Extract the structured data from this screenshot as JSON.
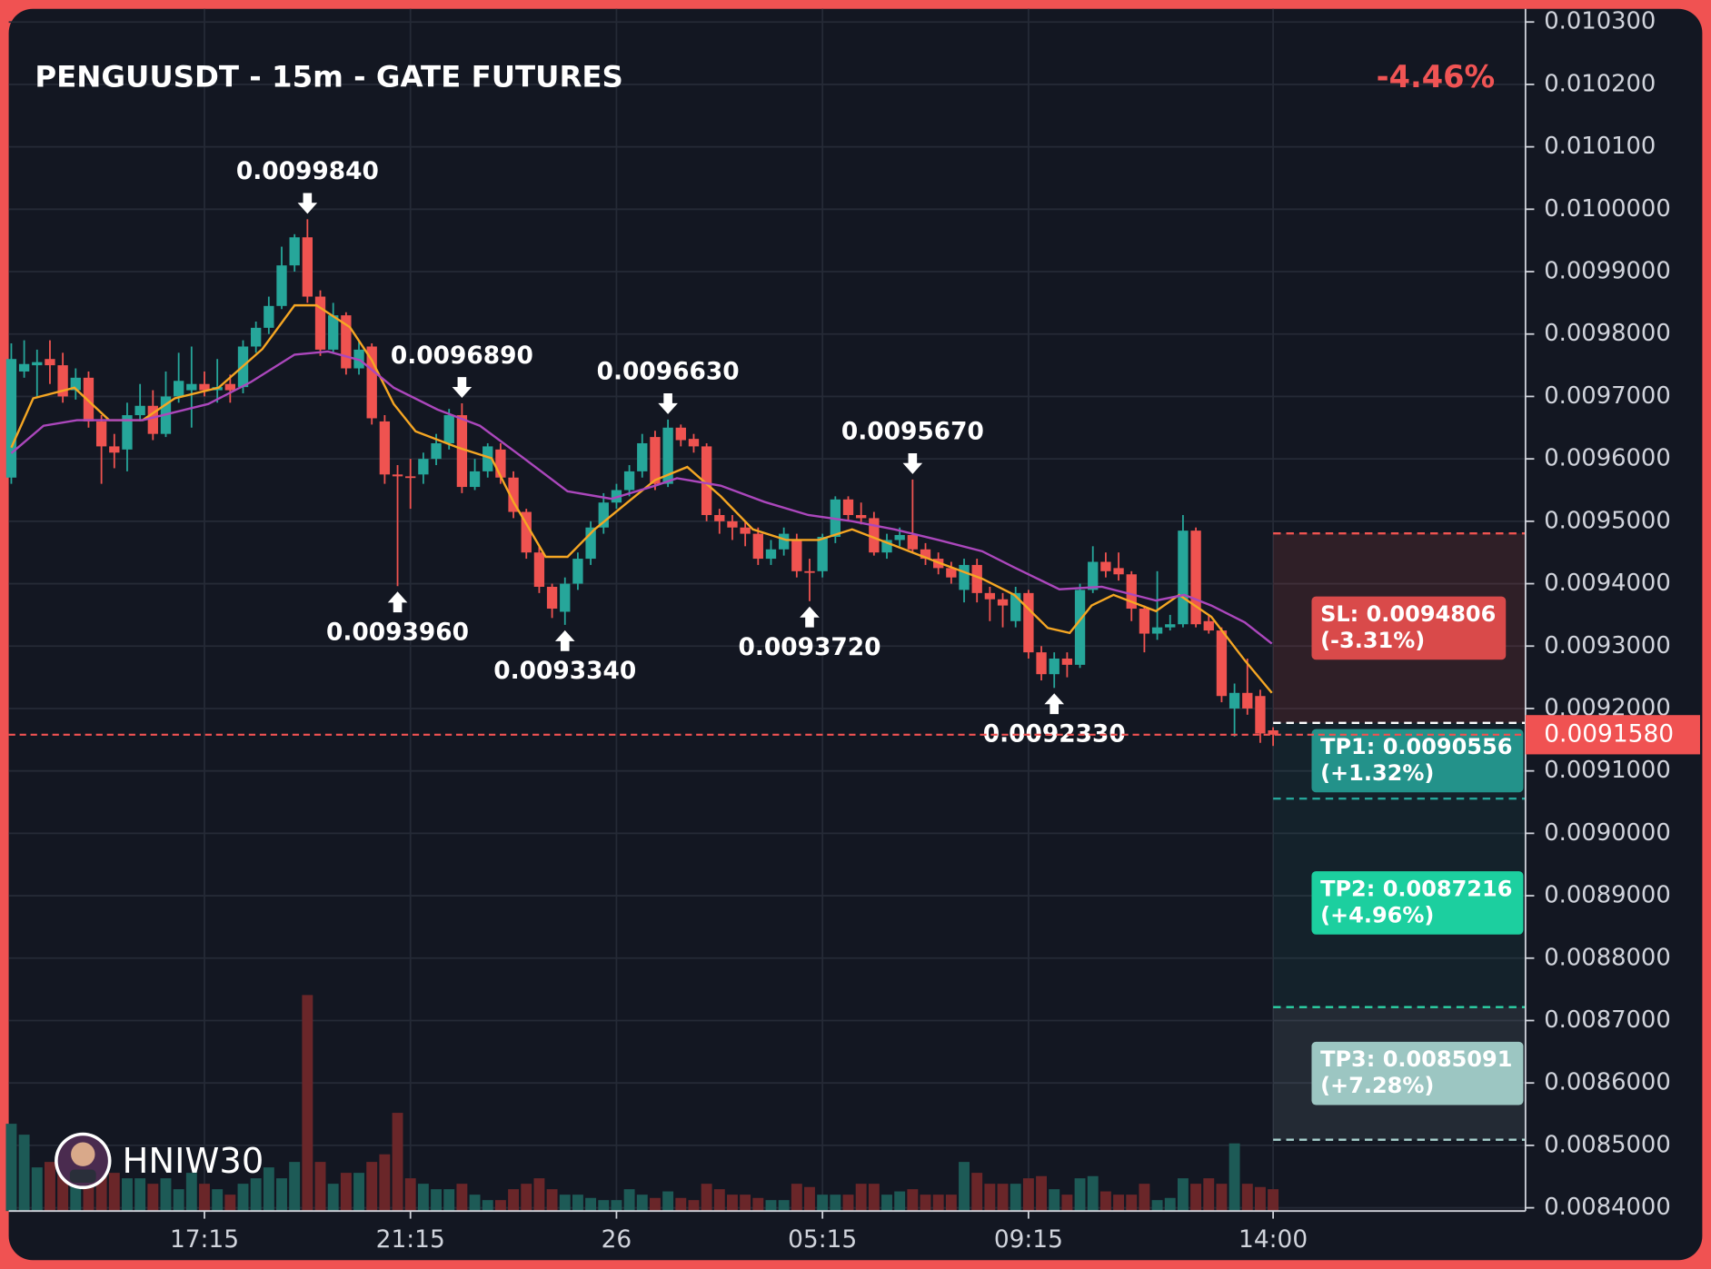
{
  "chart_data": {
    "type": "candlestick",
    "title": "PENGUUSDT - 15m - GATE FUTURES",
    "change": "-4.46%",
    "watermark": "HNIW30",
    "up_color": "#26a69a",
    "down_color": "#ef5350",
    "xlim": [
      -0.2,
      117.6
    ],
    "xticks": [
      {
        "value": 15,
        "label": "17:15"
      },
      {
        "value": 31,
        "label": "21:15"
      },
      {
        "value": 47,
        "label": "26"
      },
      {
        "value": 63,
        "label": "05:15"
      },
      {
        "value": 79,
        "label": "09:15"
      },
      {
        "value": 98,
        "label": "14:00"
      }
    ],
    "ylim": [
      0.0083948,
      0.010321
    ],
    "yticks": [
      {
        "value": 0.0084,
        "label": "0.0084000"
      },
      {
        "value": 0.0085,
        "label": "0.0085000"
      },
      {
        "value": 0.0086,
        "label": "0.0086000"
      },
      {
        "value": 0.0087,
        "label": "0.0087000"
      },
      {
        "value": 0.0088,
        "label": "0.0088000"
      },
      {
        "value": 0.0089,
        "label": "0.0089000"
      },
      {
        "value": 0.009,
        "label": "0.0090000"
      },
      {
        "value": 0.0091,
        "label": "0.0091000"
      },
      {
        "value": 0.0092,
        "label": "0.0092000"
      },
      {
        "value": 0.0093,
        "label": "0.0093000"
      },
      {
        "value": 0.0094,
        "label": "0.0094000"
      },
      {
        "value": 0.0095,
        "label": "0.0095000"
      },
      {
        "value": 0.0096,
        "label": "0.0096000"
      },
      {
        "value": 0.0097,
        "label": "0.0097000"
      },
      {
        "value": 0.0098,
        "label": "0.0098000"
      },
      {
        "value": 0.0099,
        "label": "0.0099000"
      },
      {
        "value": 0.01,
        "label": "0.0100000"
      },
      {
        "value": 0.0101,
        "label": "0.010100"
      },
      {
        "value": 0.0102,
        "label": "0.010200"
      },
      {
        "value": 0.0103,
        "label": "0.010300"
      }
    ],
    "grid": true,
    "open": [
      0.00957,
      0.00974,
      0.00975,
      0.00976,
      0.00975,
      0.00971,
      0.00973,
      0.00966,
      0.00962,
      0.009615,
      0.00967,
      0.009685,
      0.00964,
      0.0097,
      0.00971,
      0.00972,
      0.00971,
      0.00972,
      0.009715,
      0.00978,
      0.00981,
      0.009845,
      0.00991,
      0.009955,
      0.00986,
      0.009775,
      0.00983,
      0.009745,
      0.00978,
      0.00966,
      0.009575,
      0.009572,
      0.009575,
      0.0096,
      0.009625,
      0.00967,
      0.009555,
      0.00958,
      0.009615,
      0.00957,
      0.009515,
      0.00945,
      0.009395,
      0.009355,
      0.0094,
      0.00944,
      0.00949,
      0.00953,
      0.00955,
      0.00958,
      0.009635,
      0.00956,
      0.00965,
      0.009632,
      0.00962,
      0.00951,
      0.0095,
      0.00949,
      0.00948,
      0.00944,
      0.009455,
      0.00947,
      0.00942,
      0.00942,
      0.009475,
      0.009535,
      0.00951,
      0.009505,
      0.00945,
      0.00947,
      0.009478,
      0.009455,
      0.00944,
      0.009425,
      0.00939,
      0.00943,
      0.009385,
      0.009375,
      0.00934,
      0.009385,
      0.00929,
      0.009255,
      0.00928,
      0.00927,
      0.00939,
      0.009435,
      0.009425,
      0.009415,
      0.00936,
      0.00932,
      0.00933,
      0.009335,
      0.009485,
      0.00934,
      0.009325,
      0.0092,
      0.009225,
      0.00922,
      0.009165
    ],
    "high": [
      0.009785,
      0.00979,
      0.009775,
      0.00979,
      0.00977,
      0.009745,
      0.00974,
      0.00967,
      0.00964,
      0.00969,
      0.00972,
      0.00971,
      0.00974,
      0.00977,
      0.00978,
      0.00974,
      0.00976,
      0.009735,
      0.00979,
      0.00982,
      0.00986,
      0.00994,
      0.00996,
      0.009984,
      0.00987,
      0.00985,
      0.009835,
      0.00979,
      0.009785,
      0.00967,
      0.00959,
      0.0096,
      0.00961,
      0.00964,
      0.00968,
      0.009689,
      0.0096,
      0.009625,
      0.009625,
      0.00958,
      0.00952,
      0.00946,
      0.0094,
      0.00941,
      0.00945,
      0.0095,
      0.009545,
      0.00956,
      0.00959,
      0.00964,
      0.009645,
      0.009663,
      0.009655,
      0.00964,
      0.009625,
      0.00952,
      0.00951,
      0.0095,
      0.00949,
      0.00947,
      0.00949,
      0.00948,
      0.00944,
      0.00948,
      0.00954,
      0.00954,
      0.00953,
      0.009515,
      0.00948,
      0.00949,
      0.009567,
      0.009465,
      0.00945,
      0.009435,
      0.00944,
      0.00944,
      0.009395,
      0.009385,
      0.009395,
      0.00939,
      0.0093,
      0.00929,
      0.00929,
      0.0094,
      0.00946,
      0.00945,
      0.00945,
      0.00942,
      0.009365,
      0.00942,
      0.00935,
      0.00951,
      0.00949,
      0.00935,
      0.00933,
      0.00924,
      0.00928,
      0.00923,
      0.00917
    ],
    "low": [
      0.00956,
      0.00973,
      0.0097,
      0.00972,
      0.00969,
      0.009695,
      0.00965,
      0.00956,
      0.009585,
      0.00958,
      0.00966,
      0.00963,
      0.009635,
      0.00969,
      0.00965,
      0.0097,
      0.00969,
      0.00969,
      0.009705,
      0.00977,
      0.0098,
      0.00984,
      0.0099,
      0.00985,
      0.009765,
      0.00977,
      0.009735,
      0.009735,
      0.009655,
      0.00956,
      0.009396,
      0.00952,
      0.00956,
      0.00959,
      0.009615,
      0.009545,
      0.00955,
      0.00957,
      0.00956,
      0.009505,
      0.00944,
      0.009385,
      0.009345,
      0.009334,
      0.00939,
      0.00943,
      0.00948,
      0.00952,
      0.00954,
      0.00957,
      0.00955,
      0.009555,
      0.00962,
      0.00961,
      0.0095,
      0.00948,
      0.00947,
      0.00946,
      0.00943,
      0.00943,
      0.009445,
      0.00941,
      0.009372,
      0.00941,
      0.009465,
      0.0095,
      0.009495,
      0.009445,
      0.00944,
      0.00946,
      0.00945,
      0.00943,
      0.009415,
      0.0094,
      0.00937,
      0.00937,
      0.00934,
      0.00933,
      0.00933,
      0.00928,
      0.009245,
      0.009233,
      0.00925,
      0.009265,
      0.009385,
      0.00941,
      0.009405,
      0.00934,
      0.00929,
      0.00931,
      0.009325,
      0.00933,
      0.00933,
      0.00932,
      0.00921,
      0.009155,
      0.00919,
      0.009145,
      0.00914
    ],
    "close": [
      0.00976,
      0.009752,
      0.009755,
      0.00975,
      0.0097,
      0.00973,
      0.00966,
      0.00962,
      0.00961,
      0.00967,
      0.009685,
      0.00964,
      0.0097,
      0.009725,
      0.00972,
      0.00971,
      0.009715,
      0.00971,
      0.00978,
      0.00981,
      0.009845,
      0.00991,
      0.009955,
      0.00986,
      0.009775,
      0.00983,
      0.009745,
      0.009775,
      0.009665,
      0.009575,
      0.009572,
      0.00957,
      0.0096,
      0.009625,
      0.00967,
      0.009555,
      0.00958,
      0.00962,
      0.00957,
      0.009515,
      0.00945,
      0.009395,
      0.00936,
      0.0094,
      0.00944,
      0.00949,
      0.00953,
      0.00955,
      0.00958,
      0.009625,
      0.00956,
      0.00965,
      0.00963,
      0.00962,
      0.00951,
      0.0095,
      0.00949,
      0.00948,
      0.00944,
      0.009455,
      0.00948,
      0.00942,
      0.009418,
      0.009475,
      0.009535,
      0.00951,
      0.009505,
      0.00945,
      0.00947,
      0.009478,
      0.009455,
      0.00944,
      0.009425,
      0.00941,
      0.00943,
      0.009385,
      0.009375,
      0.009365,
      0.009385,
      0.00929,
      0.009255,
      0.00928,
      0.00927,
      0.00939,
      0.009435,
      0.00942,
      0.009415,
      0.00936,
      0.00932,
      0.00933,
      0.009335,
      0.009485,
      0.009335,
      0.009325,
      0.00922,
      0.009225,
      0.0092,
      0.00916,
      0.009158
    ],
    "volume": [
      80,
      70,
      40,
      45,
      40,
      35,
      30,
      40,
      35,
      30,
      30,
      25,
      30,
      20,
      35,
      25,
      20,
      15,
      25,
      30,
      40,
      30,
      45,
      198,
      45,
      25,
      35,
      35,
      45,
      52,
      90,
      30,
      25,
      20,
      20,
      25,
      15,
      10,
      10,
      20,
      25,
      30,
      20,
      15,
      15,
      12,
      10,
      10,
      20,
      15,
      12,
      18,
      12,
      10,
      25,
      20,
      15,
      15,
      12,
      10,
      10,
      25,
      22,
      15,
      15,
      15,
      25,
      25,
      15,
      18,
      20,
      15,
      15,
      15,
      45,
      35,
      25,
      25,
      25,
      30,
      32,
      20,
      15,
      30,
      32,
      18,
      15,
      15,
      25,
      10,
      12,
      30,
      25,
      30,
      25,
      62,
      25,
      22,
      20
    ],
    "series": [
      {
        "color": "#f5a623",
        "x": [
          0,
          1.7,
          4.9,
          7.6,
          10.2,
          12.7,
          16.1,
          19.5,
          22.0,
          23.7,
          26.3,
          28.0,
          29.7,
          31.4,
          34.7,
          37.3,
          39.0,
          41.5,
          43.2,
          45.3,
          47.9,
          50.0,
          52.5,
          55.1,
          57.6,
          60.2,
          62.7,
          65.3,
          68.6,
          72.0,
          75.4,
          77.9,
          80.5,
          82.2,
          83.9,
          85.6,
          88.9,
          90.7,
          93.2,
          95.8,
          97.9
        ],
        "values": [
          0.009618,
          0.009697,
          0.009714,
          0.009662,
          0.009662,
          0.009697,
          0.009714,
          0.009776,
          0.009846,
          0.009846,
          0.009811,
          0.009758,
          0.009688,
          0.009644,
          0.009618,
          0.009601,
          0.009531,
          0.009443,
          0.009443,
          0.009487,
          0.009531,
          0.009566,
          0.009587,
          0.00954,
          0.009487,
          0.00947,
          0.00947,
          0.009487,
          0.009461,
          0.009434,
          0.009408,
          0.009382,
          0.009329,
          0.009321,
          0.009365,
          0.009382,
          0.009356,
          0.009382,
          0.009347,
          0.009277,
          0.009225
        ]
      },
      {
        "color": "#ab47bc",
        "x": [
          0,
          2.5,
          5.1,
          10.2,
          15.3,
          18.6,
          22.0,
          24.6,
          27.1,
          29.7,
          33.1,
          36.4,
          39.8,
          43.2,
          46.6,
          50.0,
          51.7,
          55.1,
          58.5,
          61.9,
          65.3,
          68.6,
          72.0,
          75.4,
          77.9,
          81.4,
          84.7,
          88.9,
          91.1,
          93.2,
          95.8,
          97.9
        ],
        "values": [
          0.009609,
          0.009653,
          0.009662,
          0.009662,
          0.009688,
          0.009723,
          0.009767,
          0.009772,
          0.009758,
          0.009714,
          0.009679,
          0.009653,
          0.009601,
          0.009548,
          0.009536,
          0.009557,
          0.009569,
          0.009557,
          0.009531,
          0.00951,
          0.0095,
          0.009487,
          0.00947,
          0.009452,
          0.009426,
          0.009391,
          0.009395,
          0.009373,
          0.009382,
          0.009365,
          0.009338,
          0.009304
        ]
      }
    ],
    "annotations": [
      {
        "x": 23,
        "value": 0.009984,
        "label": "0.0099840",
        "direction": "down"
      },
      {
        "x": 30,
        "value": 0.009396,
        "label": "0.0093960",
        "direction": "up"
      },
      {
        "x": 35,
        "value": 0.009689,
        "label": "0.0096890",
        "direction": "down"
      },
      {
        "x": 43,
        "value": 0.009334,
        "label": "0.0093340",
        "direction": "up"
      },
      {
        "x": 51,
        "value": 0.009663,
        "label": "0.0096630",
        "direction": "down"
      },
      {
        "x": 62,
        "value": 0.009372,
        "label": "0.0093720",
        "direction": "up"
      },
      {
        "x": 70,
        "value": 0.009567,
        "label": "0.0095670",
        "direction": "down"
      },
      {
        "x": 81,
        "value": 0.009233,
        "label": "0.0092330",
        "direction": "up"
      }
    ],
    "entry": 0.009177,
    "zone_start": 98,
    "current_price": {
      "value": 0.009158,
      "label": "0.0091580"
    },
    "levels": [
      {
        "label": "SL: 0.0094806",
        "change": "(-3.31%)",
        "value": 0.0094806,
        "color": "#d94a4a",
        "zone": "rgba(239,83,80,0.13)",
        "line": "#ef5350",
        "text": "#ffffff"
      },
      {
        "label": "TP1: 0.0090556",
        "change": "(+1.32%)",
        "value": 0.0090556,
        "color": "#23928a",
        "zone": "rgba(38,166,154,0.08)",
        "line": "#26a69a",
        "text": "#ffffff"
      },
      {
        "label": "TP2: 0.0087216",
        "change": "(+4.96%)",
        "value": 0.0087216,
        "color": "#1ccf9f",
        "zone": "rgba(38,166,154,0.08)",
        "line": "#2bd3a5",
        "text": "#ffffff"
      },
      {
        "label": "TP3: 0.0085091",
        "change": "(+7.28%)",
        "value": 0.0085091,
        "color": "#9cc6c2",
        "zone": "rgba(160,180,190,0.12)",
        "line": "#a9d3cf",
        "text": "#ffffff"
      }
    ]
  }
}
